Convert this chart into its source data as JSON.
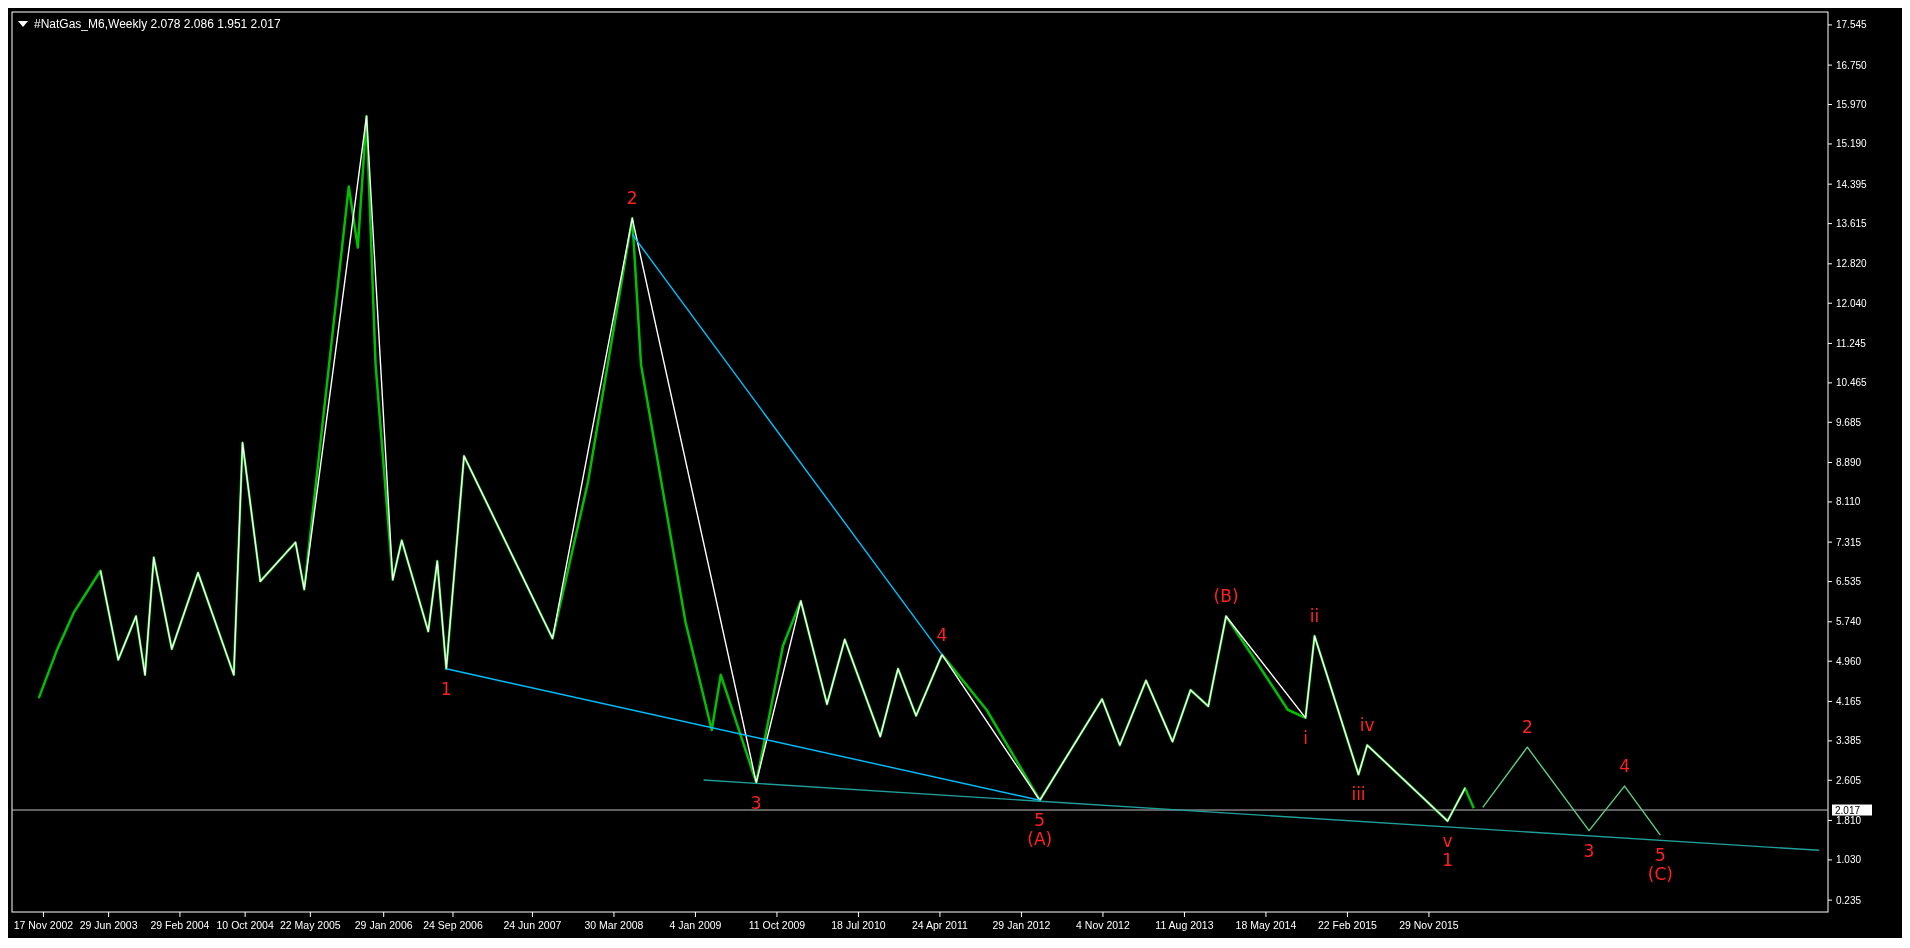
{
  "chart_data": {
    "type": "line",
    "title": "#NatGas_M6,Weekly  2.078 2.086 1.951 2.017",
    "xlim": [
      "2002-08-01",
      "2019-08-31"
    ],
    "ylim": [
      0,
      17.8
    ],
    "xticks": [
      {
        "value": "2002-11-17",
        "label": "17 Nov 2002"
      },
      {
        "value": "2003-06-29",
        "label": "29 Jun 2003"
      },
      {
        "value": "2004-02-29",
        "label": "29 Feb 2004"
      },
      {
        "value": "2004-10-10",
        "label": "10 Oct 2004"
      },
      {
        "value": "2005-05-22",
        "label": "22 May 2005"
      },
      {
        "value": "2006-01-29",
        "label": "29 Jan 2006"
      },
      {
        "value": "2006-09-24",
        "label": "24 Sep 2006"
      },
      {
        "value": "2007-06-24",
        "label": "24 Jun 2007"
      },
      {
        "value": "2008-03-30",
        "label": "30 Mar 2008"
      },
      {
        "value": "2009-01-04",
        "label": "4 Jan 2009"
      },
      {
        "value": "2009-10-11",
        "label": "11 Oct 2009"
      },
      {
        "value": "2010-07-18",
        "label": "18 Jul 2010"
      },
      {
        "value": "2011-04-24",
        "label": "24 Apr 2011"
      },
      {
        "value": "2012-01-29",
        "label": "29 Jan 2012"
      },
      {
        "value": "2012-11-04",
        "label": "4 Nov 2012"
      },
      {
        "value": "2013-08-11",
        "label": "11 Aug 2013"
      },
      {
        "value": "2014-05-18",
        "label": "18 May 2014"
      },
      {
        "value": "2015-02-22",
        "label": "22 Feb 2015"
      },
      {
        "value": "2015-11-29",
        "label": "29 Nov 2015"
      }
    ],
    "yticks": [
      0.235,
      {
        "value": 1.03,
        "label": "1.030"
      },
      {
        "value": 1.81,
        "label": "1.810"
      },
      2.605,
      3.385,
      4.165,
      {
        "value": 4.96,
        "label": "4.960"
      },
      {
        "value": 5.74,
        "label": "5.740"
      },
      6.535,
      7.315,
      {
        "value": 8.11,
        "label": "8.110"
      },
      {
        "value": 8.89,
        "label": "8.890"
      },
      9.685,
      10.465,
      11.245,
      {
        "value": 12.04,
        "label": "12.040"
      },
      {
        "value": 12.82,
        "label": "12.820"
      },
      13.615,
      14.395,
      {
        "value": 15.19,
        "label": "15.190"
      },
      {
        "value": 15.97,
        "label": "15.970"
      },
      {
        "value": 16.75,
        "label": "16.750"
      },
      17.545
    ],
    "grid": false,
    "annotations": [
      {
        "text": "1",
        "x": "2006-09",
        "y": 4.81
      },
      {
        "text": "2",
        "x": "2008-06",
        "y": 13.72
      },
      {
        "text": "3",
        "x": "2009-08",
        "y": 2.56
      },
      {
        "text": "4",
        "x": "2011-05",
        "y": 5.09
      },
      {
        "text": "5",
        "x": "2012-04",
        "y": 2.21
      },
      {
        "text": "(A)",
        "x": "2012-04",
        "y": 2.21
      },
      {
        "text": "(B)",
        "x": "2014-01",
        "y": 5.85
      },
      {
        "text": "i",
        "x": "2014-10",
        "y": 3.84
      },
      {
        "text": "ii",
        "x": "2014-11",
        "y": 5.46
      },
      {
        "text": "iii",
        "x": "2015-04",
        "y": 2.72
      },
      {
        "text": "iv",
        "x": "2015-05",
        "y": 3.3
      },
      {
        "text": "v",
        "x": "2016-02",
        "y": 1.8
      },
      {
        "text": "1",
        "x": "2016-02",
        "y": 1.8
      },
      {
        "text": "2",
        "x": "2016-11",
        "y": 3.26
      },
      {
        "text": "3",
        "x": "2017-06",
        "y": 1.61
      },
      {
        "text": "4",
        "x": "2017-10",
        "y": 2.49
      },
      {
        "text": "5",
        "x": "2018-02",
        "y": 1.52
      },
      {
        "text": "(C)",
        "x": "2018-02",
        "y": 1.52
      }
    ],
    "ref_lines": [
      {
        "axis": "y",
        "value": 2.017,
        "label": "2.017",
        "color": "#c0c0c0"
      }
    ],
    "series": [
      {
        "color": "#00c000",
        "x": [
          "2002-11",
          "2003-01",
          "2003-03",
          "2003-06",
          "2003-08",
          "2003-10",
          "2003-11",
          "2003-12",
          "2004-02",
          "2004-05",
          "2004-09",
          "2004-10",
          "2004-12",
          "2005-04",
          "2005-05",
          "2005-10",
          "2005-11",
          "2005-12",
          "2006-01",
          "2006-03",
          "2006-04",
          "2006-07",
          "2006-08",
          "2006-09",
          "2006-11",
          "2007-03",
          "2007-09",
          "2008-01",
          "2008-06",
          "2008-07",
          "2008-12",
          "2009-03",
          "2009-04",
          "2009-08",
          "2009-11",
          "2010-01",
          "2010-04",
          "2010-06",
          "2010-10",
          "2010-12",
          "2011-02",
          "2011-05",
          "2011-10",
          "2012-04",
          "2012-11",
          "2013-01",
          "2013-04",
          "2013-07",
          "2013-09",
          "2013-11",
          "2014-01",
          "2014-05",
          "2014-08",
          "2014-10",
          "2014-11",
          "2015-04",
          "2015-05",
          "2016-02",
          "2016-04",
          "2016-05"
        ],
        "values": [
          4.23,
          5.16,
          5.92,
          6.75,
          4.99,
          5.85,
          4.69,
          7.01,
          5.2,
          6.71,
          4.69,
          9.28,
          6.54,
          7.31,
          6.38,
          14.35,
          13.14,
          15.74,
          10.83,
          6.57,
          7.35,
          5.55,
          6.94,
          4.81,
          9.02,
          7.59,
          5.41,
          8.51,
          13.72,
          10.83,
          5.73,
          3.6,
          4.69,
          2.56,
          5.27,
          6.15,
          4.11,
          5.39,
          3.47,
          4.81,
          3.88,
          5.09,
          4.0,
          2.21,
          4.21,
          3.3,
          4.58,
          3.37,
          4.39,
          4.07,
          5.85,
          4.81,
          4.0,
          3.84,
          5.46,
          2.72,
          3.3,
          1.8,
          2.45,
          2.05
        ]
      },
      {
        "color": "#ffffff",
        "x": [
          "2003-06",
          "2003-08",
          "2003-10",
          "2003-11",
          "2003-12",
          "2004-02",
          "2004-05",
          "2004-09",
          "2004-10",
          "2004-12",
          "2005-04",
          "2005-05",
          "2005-12",
          "2006-03",
          "2006-04",
          "2006-07",
          "2006-08",
          "2006-09",
          "2006-11",
          "2007-09",
          "2008-06",
          "2009-08",
          "2010-01",
          "2010-04",
          "2010-06",
          "2010-10",
          "2010-12",
          "2011-02",
          "2011-05",
          "2012-04",
          "2012-11",
          "2013-01",
          "2013-04",
          "2013-07",
          "2013-09",
          "2013-11",
          "2014-01",
          "2014-10",
          "2014-11",
          "2015-04",
          "2015-05",
          "2016-02",
          "2016-04"
        ],
        "values": [
          6.75,
          4.99,
          5.85,
          4.69,
          7.01,
          5.2,
          6.71,
          4.69,
          9.28,
          6.54,
          7.31,
          6.38,
          15.74,
          6.57,
          7.35,
          5.55,
          6.94,
          4.81,
          9.02,
          5.41,
          13.72,
          2.56,
          6.15,
          4.11,
          5.39,
          3.47,
          4.81,
          3.88,
          5.09,
          2.21,
          4.21,
          3.3,
          4.58,
          3.37,
          4.39,
          4.07,
          5.85,
          3.84,
          5.46,
          2.72,
          3.3,
          1.8,
          2.45
        ]
      },
      {
        "color": "#00bfff",
        "x": [
          "2006-09",
          "2012-04"
        ],
        "values": [
          4.81,
          2.21
        ]
      },
      {
        "color": "#00bfff",
        "x": [
          "2008-06",
          "2011-05"
        ],
        "values": [
          13.4,
          5.09
        ]
      },
      {
        "color": "#1f9e9a",
        "x": [
          "2009-02",
          "2019-08"
        ],
        "values": [
          2.61,
          1.22
        ]
      },
      {
        "color": "#5fcf80",
        "x": [
          "2016-06",
          "2016-11",
          "2017-06",
          "2017-10",
          "2018-02"
        ],
        "values": [
          2.07,
          3.26,
          1.61,
          2.49,
          1.52
        ]
      }
    ]
  }
}
